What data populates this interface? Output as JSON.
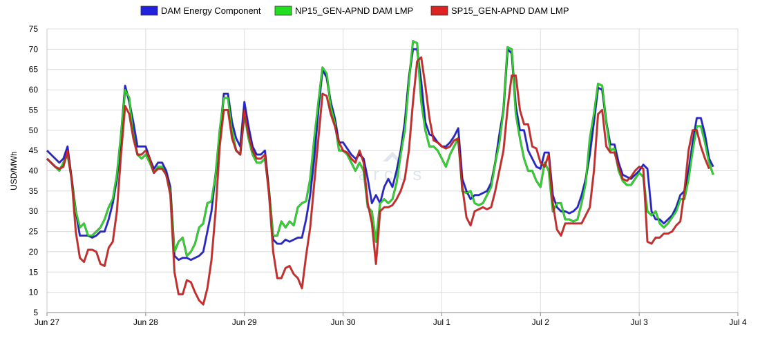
{
  "chart_data": {
    "type": "line",
    "title": "",
    "xlabel": "",
    "ylabel": "USD/MWh",
    "ylim": [
      5,
      75
    ],
    "yticks": [
      5,
      10,
      15,
      20,
      25,
      30,
      35,
      40,
      45,
      50,
      55,
      60,
      65,
      70,
      75
    ],
    "xlim": [
      0,
      168
    ],
    "x_unit": "hour",
    "x_tick_labels": [
      {
        "x": 0,
        "label": "Jun 27"
      },
      {
        "x": 24,
        "label": "Jun 28"
      },
      {
        "x": 48,
        "label": "Jun 29"
      },
      {
        "x": 72,
        "label": "Jun 30"
      },
      {
        "x": 96,
        "label": "Jul 1"
      },
      {
        "x": 120,
        "label": "Jul 2"
      },
      {
        "x": 144,
        "label": "Jul 3"
      },
      {
        "x": 168,
        "label": "Jul 4"
      }
    ],
    "grid": true,
    "legend_position": "top-center",
    "watermark": "arcus",
    "series": [
      {
        "name": "DAM Energy Component",
        "color": "#2222dd",
        "values": [
          45,
          44,
          43,
          42,
          43,
          46,
          38,
          30,
          24,
          24,
          24,
          23.5,
          24,
          25,
          25,
          28,
          32,
          38,
          48,
          61,
          57,
          52,
          46,
          46,
          46,
          43,
          40.5,
          42,
          42,
          40,
          36,
          19,
          18,
          18.5,
          18.5,
          18,
          18.5,
          19,
          20,
          25,
          30,
          39,
          48,
          59,
          59,
          52,
          48,
          46,
          57,
          51,
          46,
          44,
          44,
          45,
          35,
          23,
          22,
          22,
          23,
          22.5,
          23,
          23.5,
          23.5,
          28,
          34,
          43,
          55,
          65,
          63,
          57,
          53,
          47,
          47,
          45.5,
          44,
          43,
          44,
          43,
          38,
          32,
          34,
          32,
          36,
          38,
          36,
          40,
          45,
          52,
          63,
          70,
          70,
          62,
          52,
          49,
          48.5,
          47,
          46,
          46,
          47,
          48.5,
          50.5,
          38,
          35,
          33,
          34,
          34,
          34.5,
          35,
          37,
          42,
          49,
          55,
          70,
          69,
          56,
          50,
          50,
          45,
          43,
          41,
          40.5,
          44.5,
          44.5,
          34,
          31,
          30,
          30,
          29.5,
          30,
          31,
          34,
          38,
          44,
          52,
          60.5,
          60,
          52,
          46.5,
          46.5,
          42,
          39,
          38.5,
          38,
          39,
          40,
          41.5,
          40.5,
          30,
          28,
          28,
          27,
          28,
          29,
          31,
          34,
          35,
          40,
          47,
          53,
          53,
          49,
          43,
          41
        ]
      },
      {
        "name": "NP15_GEN-APND DAM LMP",
        "color": "#22dd22",
        "values": [
          43,
          42,
          41,
          40,
          42,
          44,
          38,
          30,
          26,
          27,
          24,
          24,
          25,
          26,
          28,
          31,
          33,
          39,
          49,
          60,
          58,
          49,
          44,
          43,
          44,
          42,
          39.5,
          41,
          41,
          39,
          35,
          20,
          22.5,
          23.5,
          19,
          20,
          22,
          26,
          27,
          32,
          32.5,
          39,
          50,
          58,
          58,
          50,
          45,
          44,
          54,
          48,
          44,
          42,
          42,
          43,
          35,
          24,
          24,
          27.5,
          26,
          27.5,
          26.5,
          31,
          32,
          32.5,
          38,
          48,
          57,
          65.5,
          64,
          56,
          52,
          45,
          45,
          44,
          42,
          40,
          42,
          40,
          31,
          30,
          22.5,
          32,
          33,
          32,
          33,
          37,
          44,
          50,
          62,
          72,
          71.5,
          57,
          50,
          46,
          46,
          45,
          43,
          41,
          44,
          46,
          48,
          35,
          34.5,
          35,
          32,
          31.5,
          32,
          34,
          36,
          42,
          47,
          55,
          70.5,
          70,
          54,
          48,
          43,
          40,
          40,
          37.5,
          36,
          42,
          40,
          30,
          32,
          32,
          28,
          28,
          27.5,
          28,
          32,
          37,
          48,
          54,
          61.5,
          61,
          52,
          45,
          45.5,
          40,
          37.5,
          36.5,
          36.5,
          38,
          39.5,
          38.5,
          30,
          29,
          30,
          27,
          26,
          27,
          28.5,
          30,
          33,
          33,
          38,
          45,
          51,
          51,
          47,
          42,
          39
        ]
      },
      {
        "name": "SP15_GEN-APND DAM LMP",
        "color": "#dd2222",
        "values": [
          43,
          42,
          41,
          40.5,
          41,
          45,
          38,
          25,
          18.5,
          17.5,
          20.5,
          20.5,
          20,
          17,
          16.5,
          21,
          22.5,
          30,
          44,
          56,
          54,
          48,
          44,
          44,
          45,
          43,
          39.5,
          40.5,
          40.5,
          39,
          34,
          15,
          9.5,
          9.5,
          13,
          12.5,
          10,
          8,
          7,
          11,
          18,
          30,
          46,
          55,
          55,
          48,
          45,
          44,
          55,
          49,
          45,
          43,
          43,
          44,
          34,
          20,
          13.5,
          13.5,
          16,
          16.5,
          14.5,
          13.5,
          11,
          19,
          26,
          37,
          48,
          59,
          58.5,
          54,
          51,
          47,
          45,
          44.5,
          43,
          42,
          45,
          42,
          32,
          27,
          17,
          30,
          31,
          31,
          31.5,
          33,
          35,
          38,
          45,
          57,
          67,
          68,
          61,
          53,
          47.5,
          47,
          46,
          45.5,
          46,
          47.5,
          48,
          36,
          28.5,
          26.5,
          30,
          30.5,
          31,
          30.5,
          31,
          35,
          40,
          45,
          55.5,
          63.5,
          63.5,
          55,
          51.5,
          51.5,
          46,
          45.5,
          42,
          41,
          44,
          32,
          25.5,
          24,
          27,
          27,
          27,
          27,
          27,
          29,
          31,
          40,
          54,
          55,
          46,
          44.5,
          44.5,
          41,
          38,
          37.5,
          38.5,
          40,
          41,
          40.5,
          22.5,
          22,
          23.5,
          23.5,
          24.5,
          24.5,
          25,
          26.5,
          27.5,
          35,
          45,
          50,
          50,
          46,
          43,
          40.5
        ]
      }
    ]
  }
}
